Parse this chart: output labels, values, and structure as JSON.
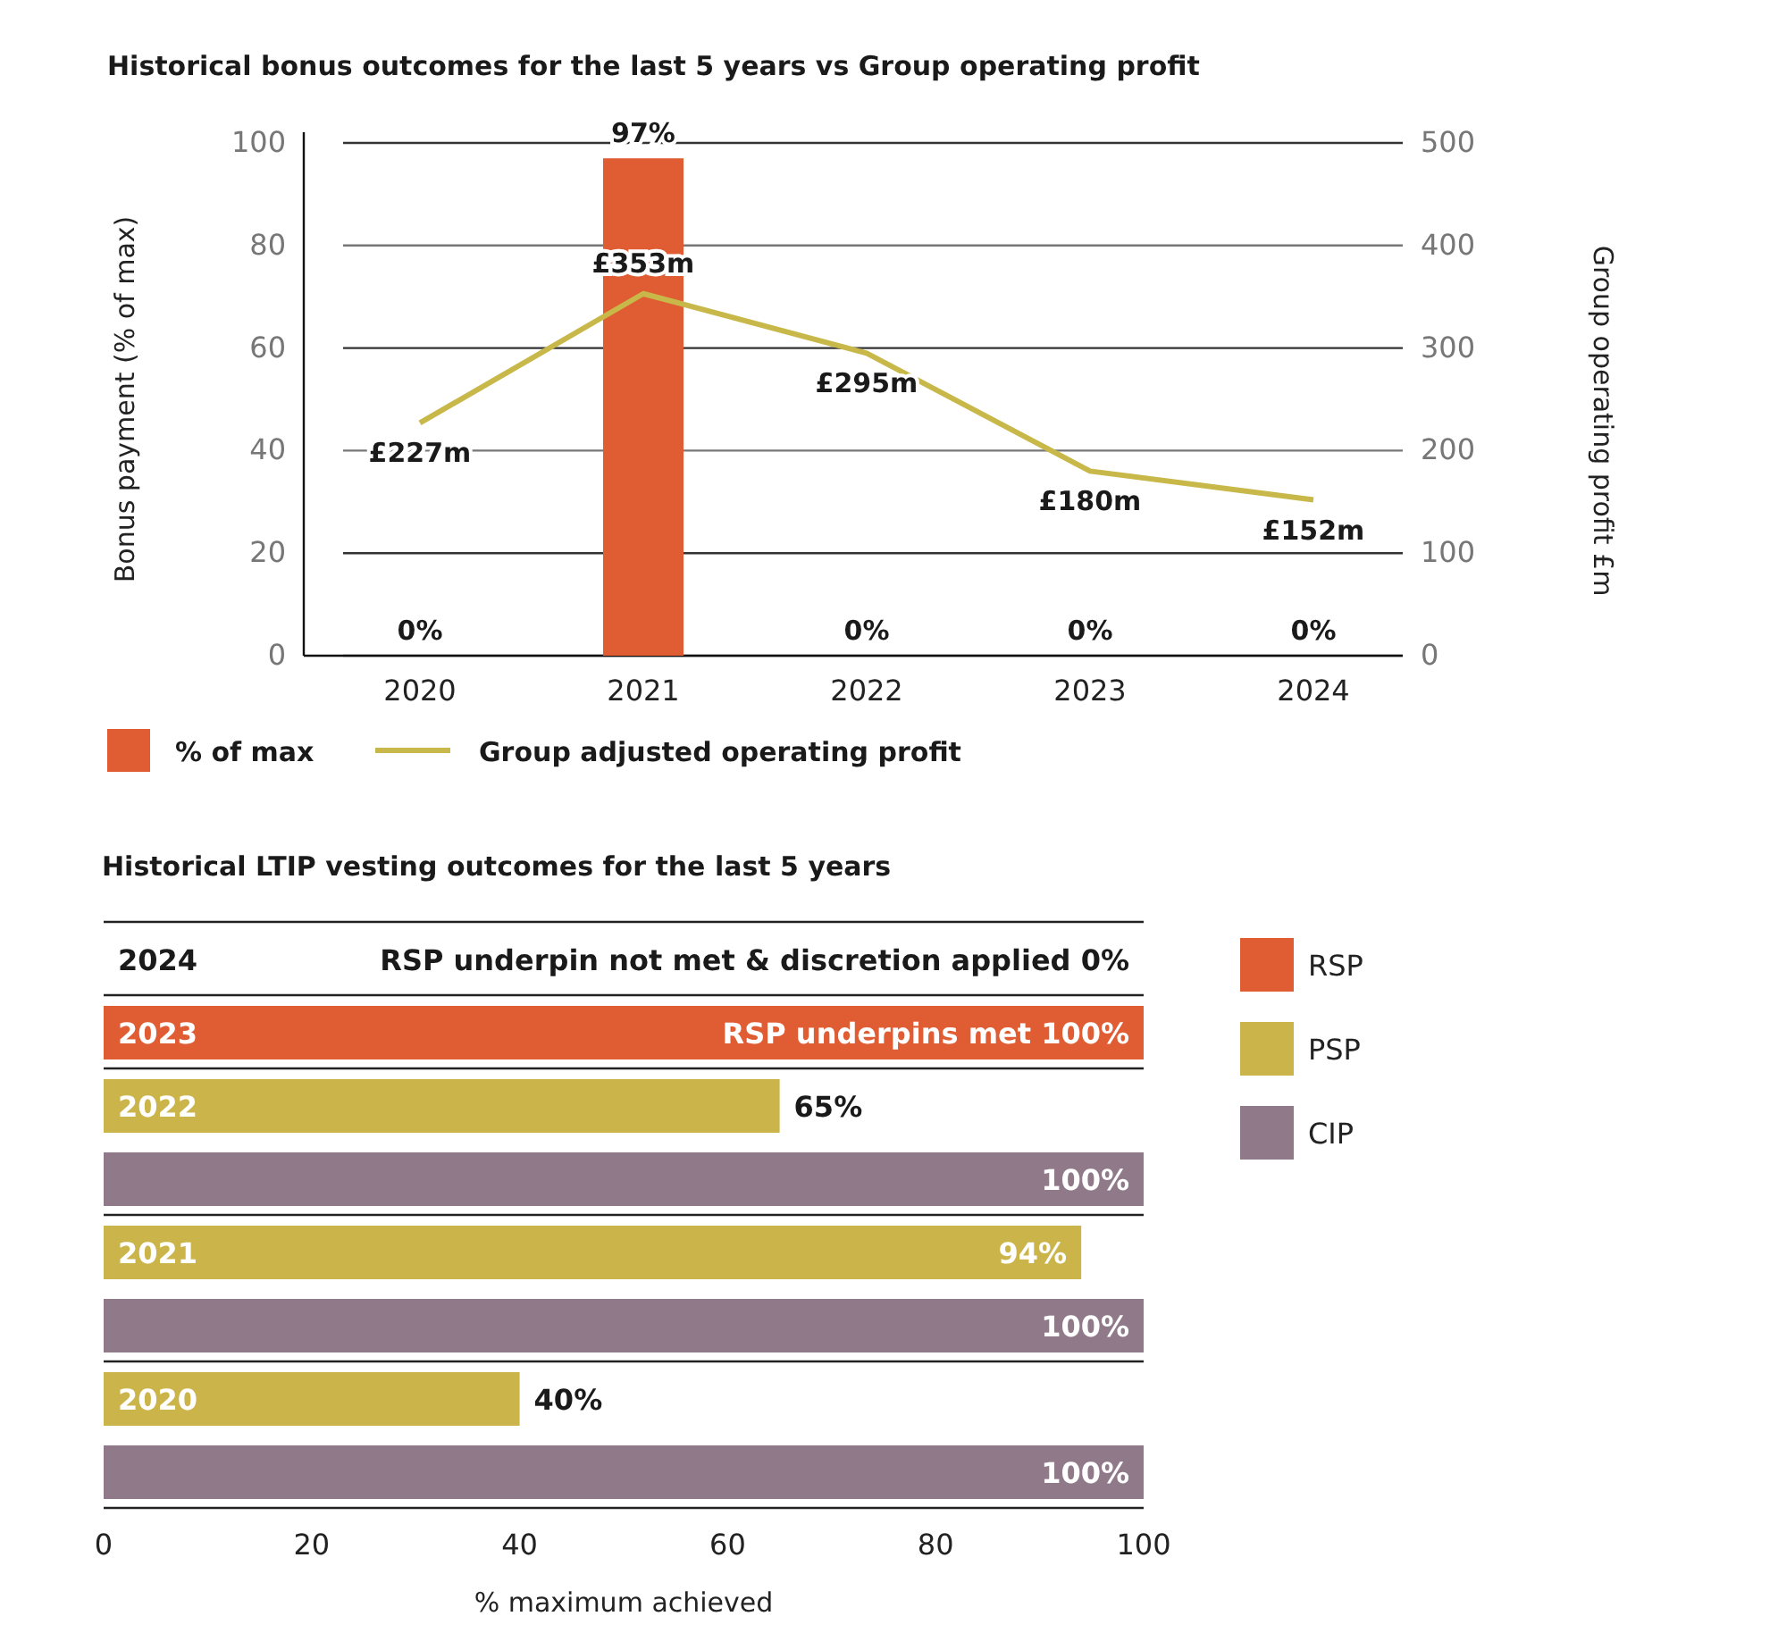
{
  "chart_data": [
    {
      "type": "bar",
      "title": "Historical bonus outcomes for the last 5 years vs Group operating profit",
      "ylabel": "Bonus payment (% of max)",
      "y2label": "Group operating profit £m",
      "categories": [
        "2020",
        "2021",
        "2022",
        "2023",
        "2024"
      ],
      "series": [
        {
          "name": "% of max",
          "color": "#e05c33",
          "values": [
            0,
            97,
            0,
            0,
            0
          ],
          "value_labels": [
            "0%",
            "97%",
            "0%",
            "0%",
            "0%"
          ]
        },
        {
          "name": "Group adjusted operating profit",
          "type": "line",
          "axis": "y2",
          "color": "#c8b84a",
          "values": [
            227,
            353,
            295,
            180,
            152
          ],
          "value_labels": [
            "£227m",
            "£353m",
            "£295m",
            "£180m",
            "£152m"
          ]
        }
      ],
      "ylim": [
        0,
        100
      ],
      "yticks": [
        0,
        20,
        40,
        60,
        80,
        100
      ],
      "y2lim": [
        0,
        500
      ],
      "y2ticks": [
        0,
        100,
        200,
        300,
        400,
        500
      ],
      "grid": "y",
      "legend": "bottom"
    },
    {
      "type": "bar",
      "orientation": "horizontal",
      "title": "Historical LTIP vesting outcomes for the last 5 years",
      "xlabel": "% maximum achieved",
      "categories": [
        "2024",
        "2023",
        "2022",
        null,
        "2021",
        null,
        "2020",
        null
      ],
      "series": [
        {
          "name": "RSP",
          "color": "#e05c33",
          "values": [
            0,
            100,
            null,
            null,
            null,
            null,
            null,
            null
          ],
          "value_labels": [
            "RSP underpin not met & discretion applied 0%",
            "RSP underpins met 100%",
            null,
            null,
            null,
            null,
            null,
            null
          ]
        },
        {
          "name": "PSP",
          "color": "#cbb54b",
          "values": [
            null,
            null,
            65,
            null,
            94,
            null,
            40,
            null
          ],
          "value_labels": [
            null,
            null,
            "65%",
            null,
            "94%",
            null,
            "40%",
            null
          ]
        },
        {
          "name": "CIP",
          "color": "#907a8a",
          "values": [
            null,
            null,
            null,
            100,
            null,
            100,
            null,
            100
          ],
          "value_labels": [
            null,
            null,
            null,
            "100%",
            null,
            "100%",
            null,
            "100%"
          ]
        }
      ],
      "xlim": [
        0,
        100
      ],
      "xticks": [
        0,
        20,
        40,
        60,
        80,
        100
      ],
      "legend": "right"
    }
  ]
}
